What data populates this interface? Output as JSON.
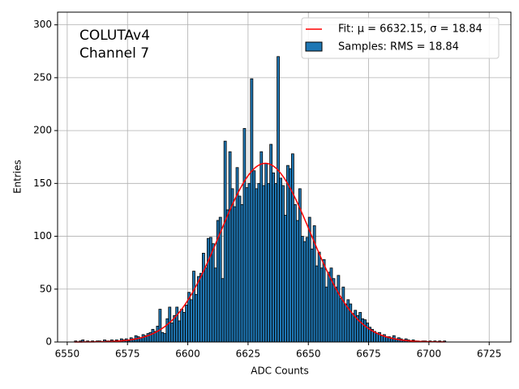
{
  "chart_data": {
    "type": "histogram",
    "annotation": [
      "COLUTAv4",
      "Channel 7"
    ],
    "x_label": "ADC Counts",
    "y_label": "Entries",
    "bins": [
      6553,
      6554,
      6555,
      6556,
      6557,
      6558,
      6559,
      6560,
      6561,
      6562,
      6563,
      6564,
      6565,
      6566,
      6567,
      6568,
      6569,
      6570,
      6571,
      6572,
      6573,
      6574,
      6575,
      6576,
      6577,
      6578,
      6579,
      6580,
      6581,
      6582,
      6583,
      6584,
      6585,
      6586,
      6587,
      6588,
      6589,
      6590,
      6591,
      6592,
      6593,
      6594,
      6595,
      6596,
      6597,
      6598,
      6599,
      6600,
      6601,
      6602,
      6603,
      6604,
      6605,
      6606,
      6607,
      6608,
      6609,
      6610,
      6611,
      6612,
      6613,
      6614,
      6615,
      6616,
      6617,
      6618,
      6619,
      6620,
      6621,
      6622,
      6623,
      6624,
      6625,
      6626,
      6627,
      6628,
      6629,
      6630,
      6631,
      6632,
      6633,
      6634,
      6635,
      6636,
      6637,
      6638,
      6639,
      6640,
      6641,
      6642,
      6643,
      6644,
      6645,
      6646,
      6647,
      6648,
      6649,
      6650,
      6651,
      6652,
      6653,
      6654,
      6655,
      6656,
      6657,
      6658,
      6659,
      6660,
      6661,
      6662,
      6663,
      6664,
      6665,
      6666,
      6667,
      6668,
      6669,
      6670,
      6671,
      6672,
      6673,
      6674,
      6675,
      6676,
      6677,
      6678,
      6679,
      6680,
      6681,
      6682,
      6683,
      6684,
      6685,
      6686,
      6687,
      6688,
      6689,
      6690,
      6691,
      6692,
      6693,
      6694,
      6695,
      6696,
      6697,
      6698,
      6699,
      6700,
      6701,
      6702,
      6703,
      6704,
      6705,
      6706,
      6707
    ],
    "series": [
      {
        "name": "Samples: RMS = 18.84",
        "color": "#1f77b4",
        "values": [
          1,
          0,
          1,
          2,
          0,
          1,
          0,
          1,
          0,
          1,
          1,
          0,
          2,
          1,
          1,
          2,
          1,
          2,
          1,
          3,
          2,
          3,
          1,
          4,
          3,
          6,
          5,
          4,
          7,
          6,
          8,
          9,
          12,
          10,
          15,
          31,
          9,
          8,
          22,
          33,
          18,
          25,
          33,
          20,
          31,
          28,
          35,
          47,
          40,
          67,
          45,
          62,
          65,
          84,
          70,
          98,
          99,
          93,
          70,
          115,
          118,
          60,
          190,
          125,
          180,
          145,
          128,
          165,
          138,
          130,
          202,
          146,
          150,
          249,
          162,
          145,
          150,
          180,
          148,
          169,
          150,
          187,
          160,
          150,
          270,
          155,
          148,
          120,
          167,
          164,
          178,
          130,
          115,
          145,
          100,
          95,
          99,
          118,
          88,
          110,
          72,
          85,
          70,
          78,
          52,
          66,
          70,
          60,
          52,
          63,
          41,
          52,
          36,
          40,
          36,
          27,
          30,
          25,
          28,
          22,
          21,
          18,
          14,
          12,
          10,
          8,
          9,
          6,
          7,
          5,
          5,
          4,
          6,
          3,
          4,
          3,
          2,
          3,
          2,
          1,
          2,
          1,
          1,
          0,
          1,
          1,
          0,
          1,
          0,
          1,
          0,
          1,
          0,
          1
        ]
      }
    ],
    "fit": {
      "name": "Fit: μ = 6632.15, σ = 18.84",
      "color": "#ff0000",
      "mu": 6632.15,
      "sigma": 18.84,
      "peak": 169
    },
    "xlim": [
      6546,
      6734
    ],
    "xticks": [
      6550,
      6575,
      6600,
      6625,
      6650,
      6675,
      6700,
      6725
    ],
    "ylim": [
      0,
      312
    ],
    "yticks": [
      0,
      50,
      100,
      150,
      200,
      250,
      300
    ],
    "grid": true,
    "legend": "upper right"
  }
}
